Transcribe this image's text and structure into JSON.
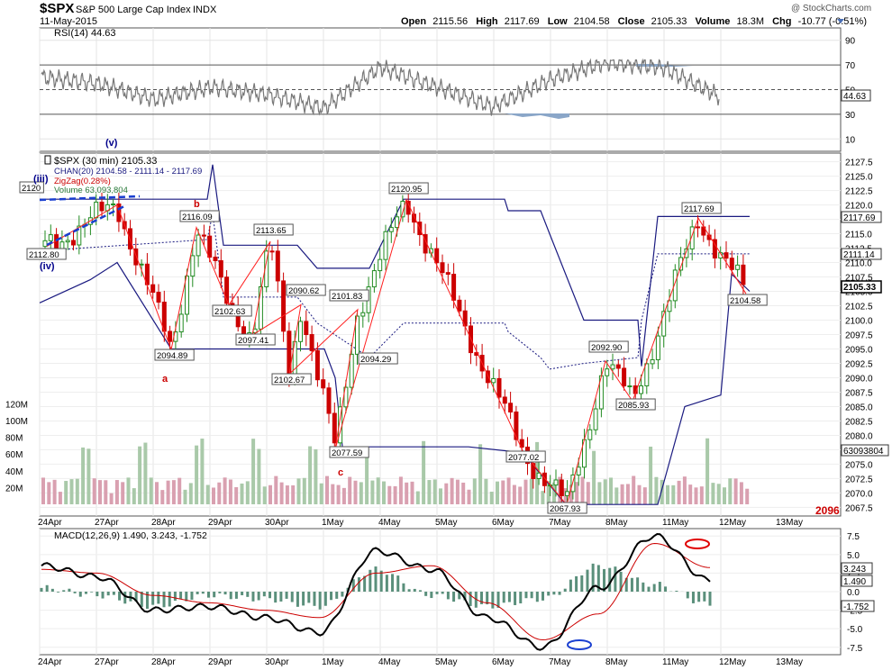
{
  "header": {
    "symbol": "$SPX",
    "name": "S&P 500 Large Cap Index",
    "exchange": "INDX",
    "date": "11-May-2015",
    "open_label": "Open",
    "open": "2115.56",
    "high_label": "High",
    "high": "2117.69",
    "low_label": "Low",
    "low": "2104.58",
    "close_label": "Close",
    "close": "2105.33",
    "volume_label": "Volume",
    "volume": "18.3M",
    "chg_label": "Chg",
    "chg": "-10.77 (-0.51%)",
    "watermark": "@ StockCharts.com"
  },
  "colors": {
    "candle_up": "#228B22",
    "candle_down": "#CC0000",
    "channel": "#1a1a80",
    "zigzag": "#ff0000",
    "wave_label": "#00008B",
    "abc_label": "#CC0000",
    "vol_up": "#a9c9a9",
    "vol_down": "#d9a0b0",
    "macd": "#000000",
    "signal": "#cc0000",
    "hist": "#5a8f7b"
  },
  "rsi_panel": {
    "label": "RSI(14) 44.63",
    "current": "44.63",
    "ticks": [
      "90",
      "70",
      "50",
      "30",
      "10"
    ]
  },
  "price_panel": {
    "legend": [
      "$SPX (30 min) 2105.33",
      "CHAN(20) 2104.58 - 2111.14 - 2117.69",
      "ZigZag(0.28%)",
      "Volume 63,093,804"
    ],
    "price_ticks": [
      "2127.5",
      "2125.0",
      "2122.5",
      "2120.0",
      "2117.5",
      "2115.0",
      "2112.5",
      "2110.0",
      "2107.5",
      "2105.0",
      "2102.5",
      "2100.0",
      "2097.5",
      "2095.0",
      "2092.5",
      "2090.0",
      "2087.5",
      "2085.0",
      "2082.5",
      "2080.0",
      "2077.5",
      "2075.0",
      "2072.5",
      "2070.0",
      "2067.5"
    ],
    "volume_ticks": [
      "120M",
      "100M",
      "80M",
      "60M",
      "40M",
      "20M"
    ],
    "right_labels": {
      "upper": "2117.69",
      "mid": "2111.14",
      "close": "2105.33",
      "volume": "63093804"
    },
    "pivot_labels": [
      "2120",
      "2112.80",
      "2094.89",
      "2116.09",
      "2102.63",
      "2113.65",
      "2097.41",
      "2090.62",
      "2102.67",
      "2101.83",
      "2094.29",
      "2077.59",
      "2120.95",
      "2077.02",
      "2067.93",
      "2092.90",
      "2085.93",
      "2117.69",
      "2104.58"
    ],
    "wave_labels": [
      "(v)",
      "(iii)",
      "(iv)",
      "b",
      "a",
      "c"
    ],
    "corner_tag": "2096"
  },
  "macd_panel": {
    "label": "MACD(12,26,9) 1.490, 3.243, -1.752",
    "ticks": [
      "7.5",
      "5.0",
      "2.5",
      "0.0",
      "-2.5",
      "-5.0",
      "-7.5"
    ],
    "right_labels": [
      "3.243",
      "1.490",
      "-1.752"
    ]
  },
  "x_axis": [
    "24Apr",
    "27Apr",
    "28Apr",
    "29Apr",
    "30Apr",
    "1May",
    "4May",
    "5May",
    "6May",
    "7May",
    "8May",
    "11May",
    "12May",
    "13May"
  ],
  "chart_data": [
    {
      "type": "line",
      "title": "RSI(14) 44.63",
      "ylim": [
        0,
        100
      ],
      "x": [
        0,
        1,
        2,
        3,
        4,
        5,
        6,
        7,
        8,
        9,
        10,
        11,
        12
      ],
      "series": [
        {
          "name": "RSI(14)",
          "values": [
            60,
            55,
            42,
            52,
            46,
            35,
            68,
            52,
            36,
            58,
            72,
            68,
            44.63
          ]
        }
      ]
    },
    {
      "type": "line",
      "title": "$SPX (30 min) 2105.33",
      "ylim": [
        2066,
        2129
      ],
      "x": [
        "24Apr",
        "27Apr",
        "28Apr",
        "28Apr",
        "29Apr",
        "29Apr",
        "29Apr",
        "30Apr",
        "30Apr",
        "1May",
        "1May",
        "4May",
        "5May",
        "6May",
        "7May",
        "7May",
        "8May",
        "8May",
        "11May",
        "12May"
      ],
      "series": [
        {
          "name": "ZigZag(0.28%)",
          "values": [
            2112.8,
            2120.0,
            2094.89,
            2116.09,
            2102.63,
            2113.65,
            2097.41,
            2102.67,
            2090.62,
            2101.83,
            2077.59,
            2120.95,
            2094.29,
            2077.02,
            2067.93,
            2092.9,
            2085.93,
            2117.69,
            2117.69,
            2104.58
          ]
        }
      ]
    },
    {
      "type": "line",
      "title": "MACD(12,26,9) 1.490, 3.243, -1.752",
      "ylim": [
        -8.5,
        8.5
      ],
      "x": [
        "24Apr",
        "27Apr",
        "28Apr",
        "29Apr",
        "30Apr",
        "1May",
        "4May",
        "5May",
        "6May",
        "7May",
        "8May",
        "11May",
        "12May"
      ],
      "series": [
        {
          "name": "MACD",
          "values": [
            3.5,
            2.0,
            -2.5,
            -2.0,
            -3.5,
            -5.5,
            5.5,
            3.0,
            -3.5,
            -7.5,
            0.5,
            7.5,
            1.49
          ]
        },
        {
          "name": "Signal",
          "values": [
            3.0,
            2.5,
            -0.5,
            -1.5,
            -2.5,
            -3.5,
            2.5,
            3.5,
            -1.5,
            -6.5,
            -3.0,
            6.5,
            3.243
          ]
        }
      ]
    }
  ]
}
